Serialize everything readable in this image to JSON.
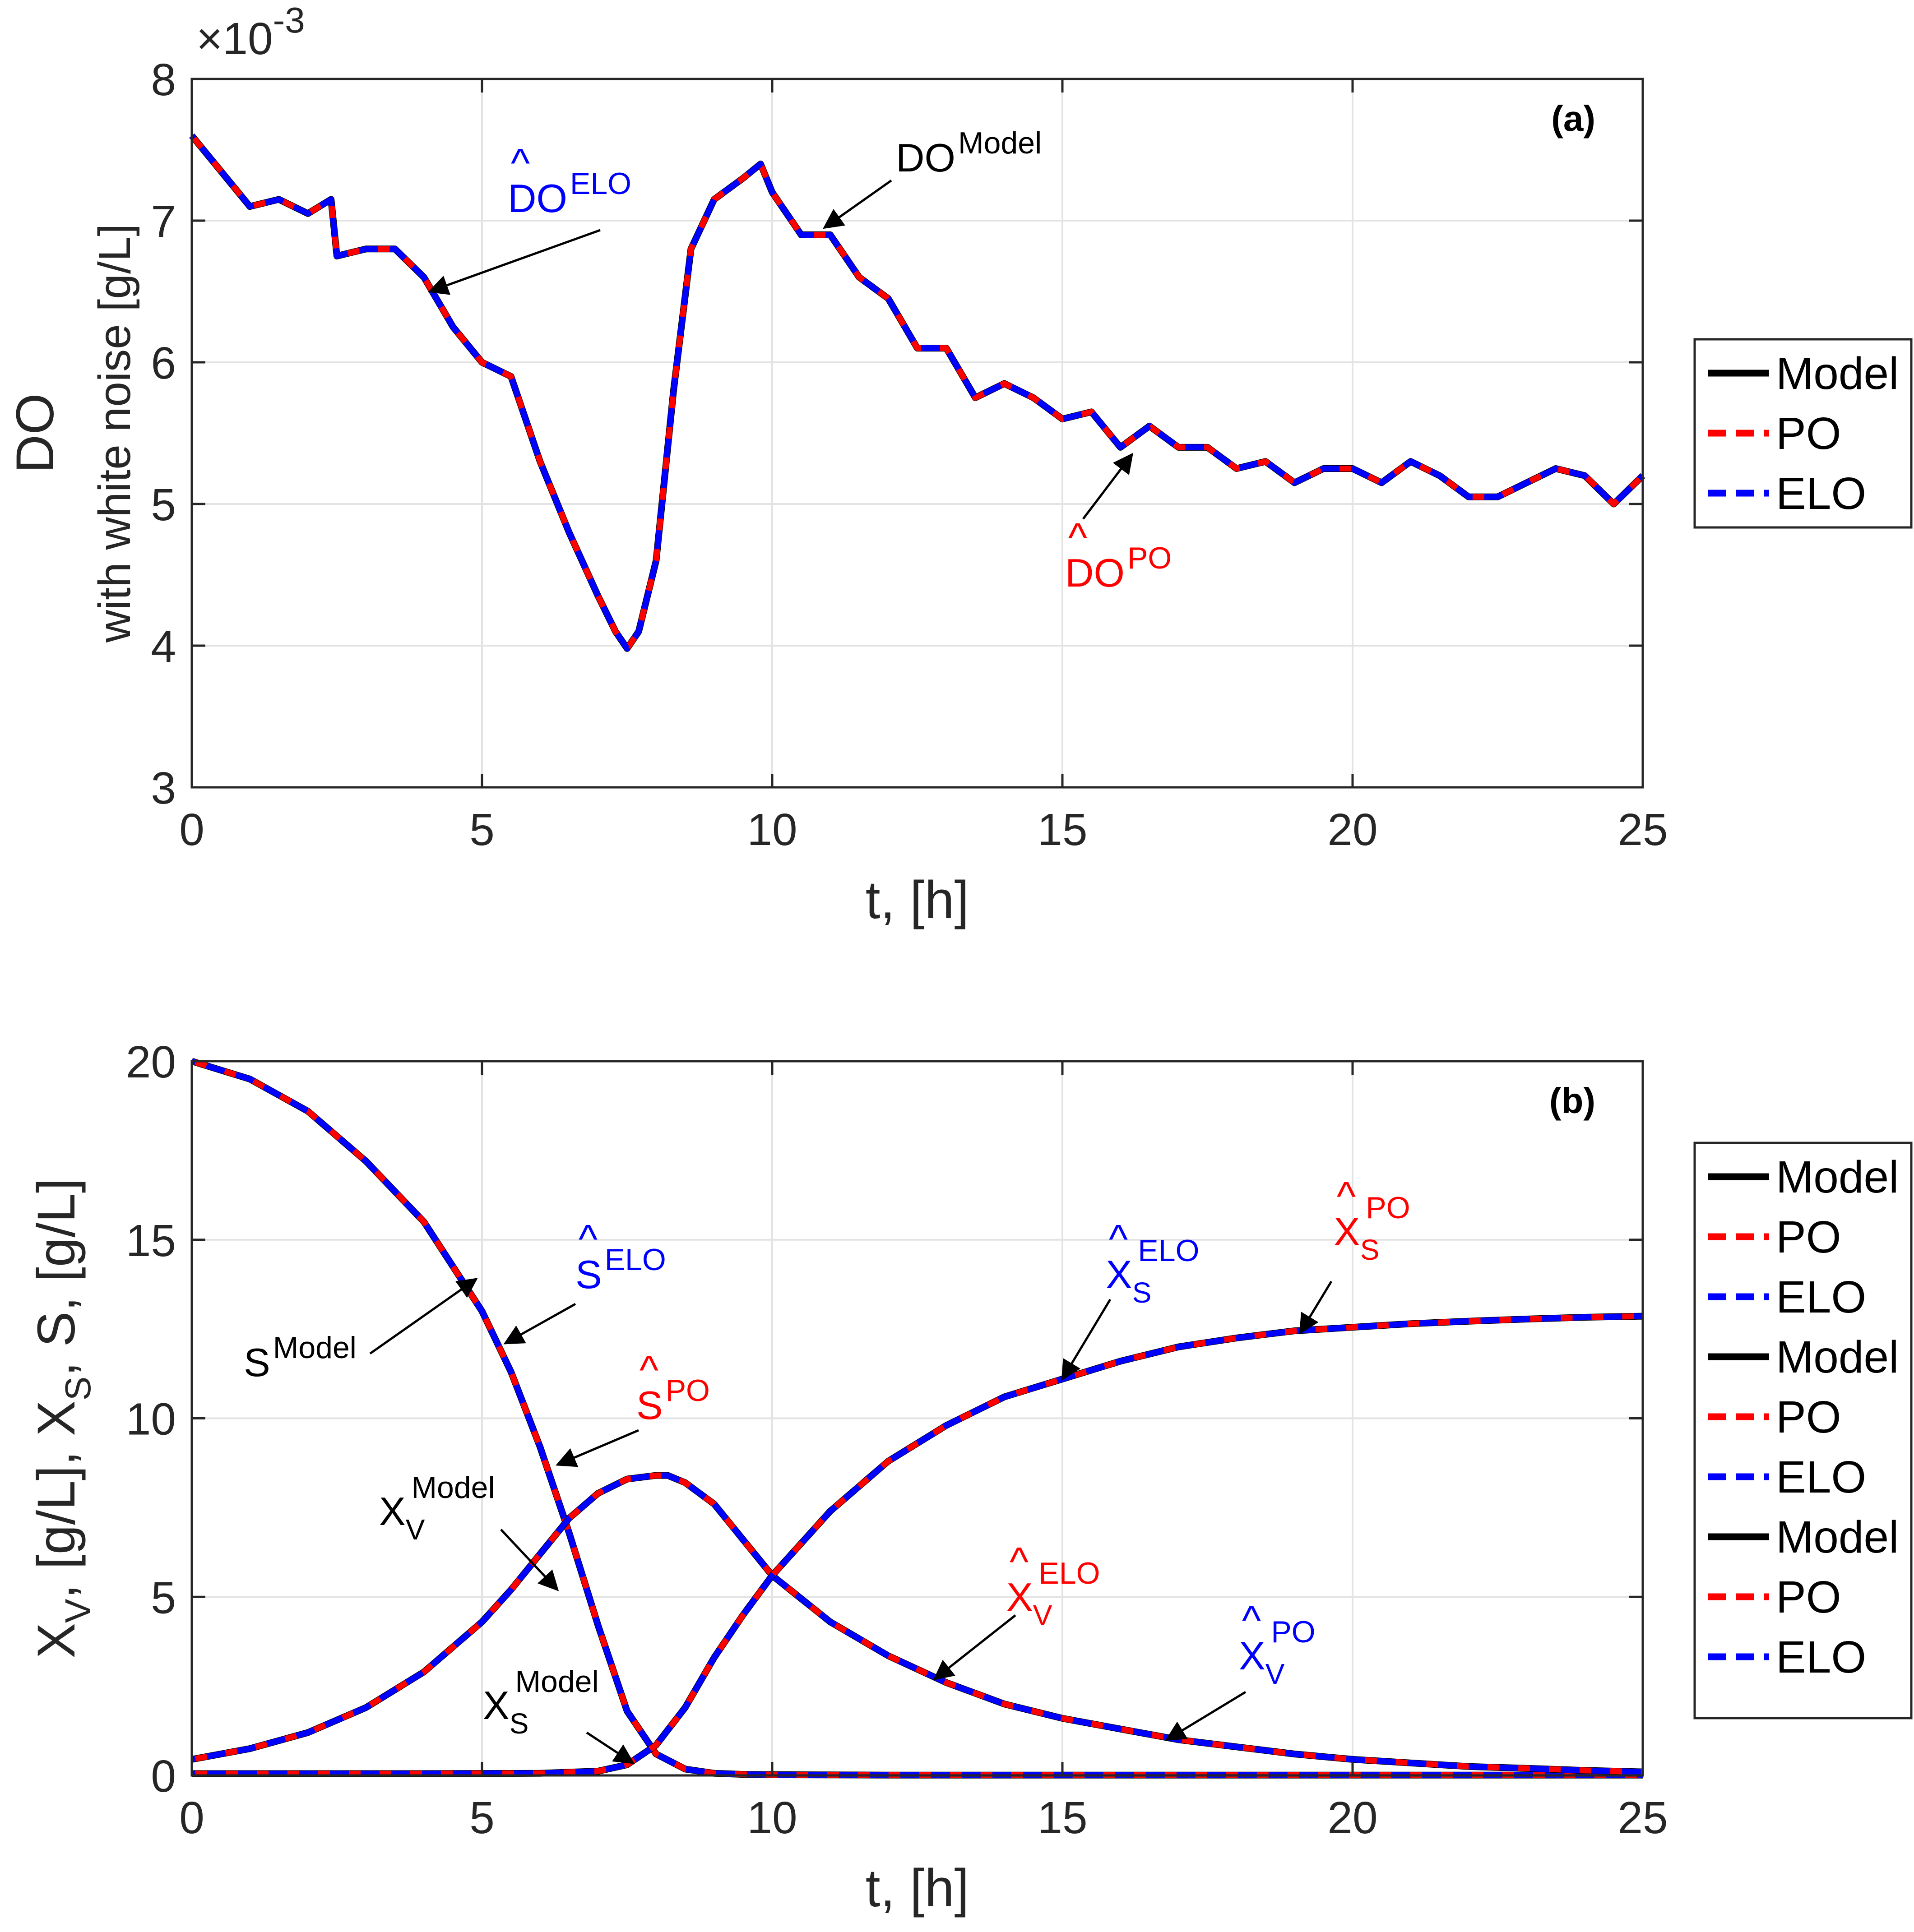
{
  "chart_data": [
    {
      "id": "a",
      "type": "line",
      "panel_label": "(a)",
      "xlabel": "t, [h]",
      "ylabel_lines": [
        "DO",
        "with white noise [g/L]"
      ],
      "y_multiplier": "×10",
      "y_exponent": "-3",
      "xlim": [
        0,
        25
      ],
      "ylim": [
        3,
        8
      ],
      "xticks": [
        0,
        5,
        10,
        15,
        20,
        25
      ],
      "yticks": [
        3,
        4,
        5,
        6,
        7,
        8
      ],
      "grid": true,
      "legend_position": "outside-right",
      "legend": [
        {
          "label": "Model",
          "color": "#000000",
          "style": "solid"
        },
        {
          "label": "PO",
          "color": "#ff0000",
          "style": "dashed"
        },
        {
          "label": "ELO",
          "color": "#0000ff",
          "style": "dashed"
        }
      ],
      "series": [
        {
          "name": "DO",
          "x": [
            0,
            0.5,
            1,
            1.5,
            2,
            2.4,
            2.5,
            3,
            3.5,
            4,
            4.5,
            5,
            5.5,
            6,
            6.5,
            7,
            7.3,
            7.5,
            7.7,
            8,
            8.3,
            8.6,
            9,
            9.5,
            9.8,
            10,
            10.5,
            11,
            11.5,
            12,
            12.5,
            13,
            13.5,
            14,
            14.5,
            15,
            15.5,
            16,
            16.5,
            17,
            17.5,
            18,
            18.5,
            19,
            19.5,
            20,
            20.5,
            21,
            21.5,
            22,
            22.5,
            23,
            23.5,
            24,
            24.5,
            25
          ],
          "y": [
            7.6,
            7.35,
            7.1,
            7.15,
            7.05,
            7.15,
            6.75,
            6.8,
            6.8,
            6.6,
            6.25,
            6.0,
            5.9,
            5.3,
            4.8,
            4.35,
            4.1,
            3.98,
            4.1,
            4.6,
            5.8,
            6.8,
            7.15,
            7.3,
            7.4,
            7.2,
            6.9,
            6.9,
            6.6,
            6.45,
            6.1,
            6.1,
            5.75,
            5.85,
            5.75,
            5.6,
            5.65,
            5.4,
            5.55,
            5.4,
            5.4,
            5.25,
            5.3,
            5.15,
            5.25,
            5.25,
            5.15,
            5.3,
            5.2,
            5.05,
            5.05,
            5.15,
            5.25,
            5.2,
            5.0,
            5.2
          ]
        }
      ],
      "annotations": [
        {
          "text": "DO",
          "sup": "ELO",
          "hat": true,
          "color": "#0000ff",
          "point": [
            4.1,
            6.5
          ]
        },
        {
          "text": "DO",
          "sup": "Model",
          "hat": false,
          "color": "#000000",
          "point": [
            10.9,
            6.95
          ]
        },
        {
          "text": "DO",
          "sup": "PO",
          "hat": true,
          "color": "#ff0000",
          "point": [
            16.2,
            5.35
          ]
        }
      ]
    },
    {
      "id": "b",
      "type": "line",
      "panel_label": "(b)",
      "xlabel": "t, [h]",
      "ylabel": "X_V, [g/L], X_S, S, [g/L]",
      "ylabel_parts": [
        "X",
        "V",
        ", [g/L], X",
        "S",
        ", S, [g/L]"
      ],
      "xlim": [
        0,
        25
      ],
      "ylim": [
        0,
        20
      ],
      "xticks": [
        0,
        5,
        10,
        15,
        20,
        25
      ],
      "yticks": [
        0,
        5,
        10,
        15,
        20
      ],
      "grid": true,
      "legend_position": "outside-right",
      "legend": [
        {
          "label": "Model",
          "color": "#000000",
          "style": "solid"
        },
        {
          "label": "PO",
          "color": "#ff0000",
          "style": "dashed"
        },
        {
          "label": "ELO",
          "color": "#0000ff",
          "style": "dashed"
        },
        {
          "label": "Model",
          "color": "#000000",
          "style": "solid"
        },
        {
          "label": "PO",
          "color": "#ff0000",
          "style": "dashed"
        },
        {
          "label": "ELO",
          "color": "#0000ff",
          "style": "dashed"
        },
        {
          "label": "Model",
          "color": "#000000",
          "style": "solid"
        },
        {
          "label": "PO",
          "color": "#ff0000",
          "style": "dashed"
        },
        {
          "label": "ELO",
          "color": "#0000ff",
          "style": "dashed"
        }
      ],
      "series": [
        {
          "name": "S",
          "x": [
            0,
            1,
            2,
            3,
            4,
            5,
            5.5,
            6,
            6.5,
            7,
            7.5,
            8,
            8.5,
            9,
            9.5,
            10,
            12,
            15,
            20,
            25
          ],
          "y": [
            20,
            19.5,
            18.6,
            17.2,
            15.5,
            13.0,
            11.3,
            9.2,
            6.8,
            4.2,
            1.8,
            0.6,
            0.18,
            0.06,
            0.03,
            0.02,
            0.01,
            0.01,
            0.01,
            0.01
          ]
        },
        {
          "name": "X_V",
          "x": [
            0,
            1,
            2,
            3,
            4,
            5,
            5.5,
            6,
            6.5,
            7,
            7.5,
            8,
            8.2,
            8.5,
            9,
            9.5,
            10,
            11,
            12,
            13,
            14,
            15,
            16,
            17,
            18,
            19,
            20,
            21,
            22,
            23,
            24,
            25
          ],
          "y": [
            0.45,
            0.75,
            1.2,
            1.9,
            2.9,
            4.3,
            5.2,
            6.2,
            7.2,
            7.9,
            8.3,
            8.4,
            8.4,
            8.2,
            7.6,
            6.6,
            5.6,
            4.3,
            3.35,
            2.6,
            2.0,
            1.6,
            1.3,
            1.0,
            0.8,
            0.6,
            0.45,
            0.35,
            0.25,
            0.2,
            0.14,
            0.1
          ]
        },
        {
          "name": "X_S",
          "x": [
            0,
            2,
            4,
            6,
            7,
            7.5,
            8,
            8.5,
            9,
            9.5,
            10,
            11,
            12,
            13,
            14,
            15,
            16,
            17,
            18,
            19,
            20,
            21,
            22,
            23,
            24,
            25
          ],
          "y": [
            0.05,
            0.05,
            0.05,
            0.06,
            0.12,
            0.3,
            0.85,
            1.9,
            3.3,
            4.5,
            5.6,
            7.4,
            8.8,
            9.8,
            10.6,
            11.1,
            11.6,
            12.0,
            12.25,
            12.45,
            12.55,
            12.65,
            12.72,
            12.78,
            12.83,
            12.86
          ]
        }
      ],
      "annotations": [
        {
          "text": "S",
          "sup": "Model",
          "sub": "",
          "hat": false,
          "color": "#000000",
          "point": [
            4.9,
            13.9
          ]
        },
        {
          "text": "S",
          "sup": "ELO",
          "sub": "",
          "hat": true,
          "color": "#0000ff",
          "point": [
            5.4,
            12.1
          ]
        },
        {
          "text": "S",
          "sup": "PO",
          "sub": "",
          "hat": true,
          "color": "#ff0000",
          "point": [
            6.3,
            8.7
          ]
        },
        {
          "text": "X",
          "sup": "Model",
          "sub": "V",
          "hat": false,
          "color": "#000000",
          "point": [
            6.3,
            5.2
          ]
        },
        {
          "text": "X",
          "sup": "Model",
          "sub": "S",
          "hat": false,
          "color": "#000000",
          "point": [
            7.6,
            0.35
          ]
        },
        {
          "text": "X",
          "sup": "ELO",
          "sub": "S",
          "hat": true,
          "color": "#0000ff",
          "point": [
            15.0,
            11.1
          ]
        },
        {
          "text": "X",
          "sup": "PO",
          "sub": "S",
          "hat": true,
          "color": "#ff0000",
          "point": [
            19.1,
            12.4
          ]
        },
        {
          "text": "X",
          "sup": "ELO",
          "sub": "V",
          "hat": true,
          "color": "#ff0000",
          "point": [
            12.8,
            2.7
          ]
        },
        {
          "text": "X",
          "sup": "PO",
          "sub": "V",
          "hat": true,
          "color": "#0000ff",
          "point": [
            16.8,
            1.0
          ]
        }
      ]
    }
  ]
}
